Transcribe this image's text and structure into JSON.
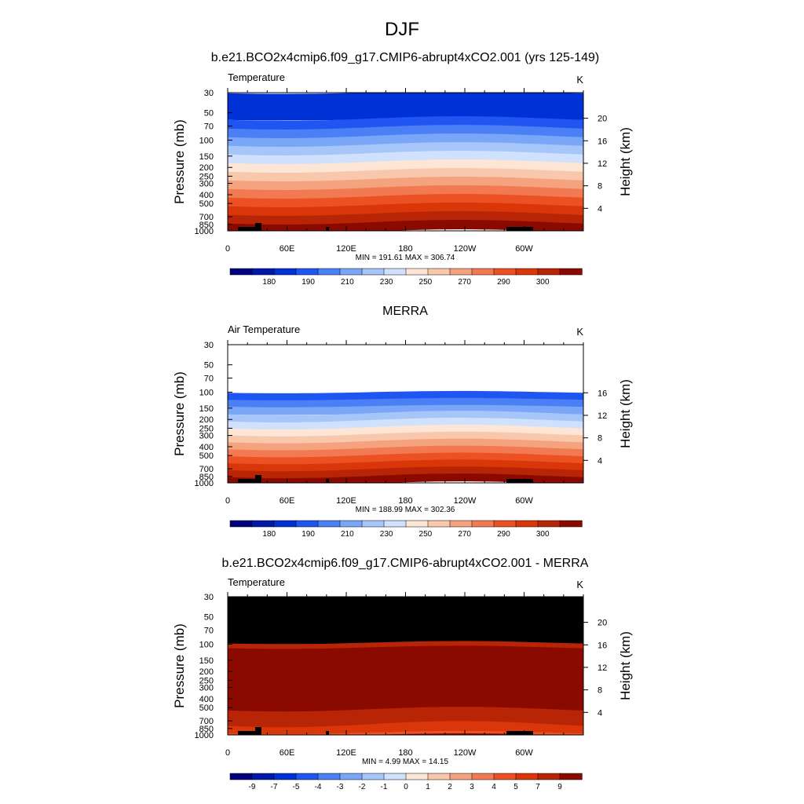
{
  "figure": {
    "title": "DJF"
  },
  "colors": {
    "scale": [
      "#00007f",
      "#0018a8",
      "#0031d6",
      "#1f55f0",
      "#4a7ff5",
      "#7aa6f7",
      "#a6c6fa",
      "#cfe1fc",
      "#fde6d6",
      "#f9c7ab",
      "#f5a27e",
      "#f27a53",
      "#ec5124",
      "#d93609",
      "#b82406",
      "#8b0a00"
    ],
    "pressure_axis": [
      "30",
      "50",
      "70",
      "100",
      "150",
      "200",
      "250",
      "300",
      "400",
      "500",
      "700",
      "850",
      "1000"
    ],
    "lon_axis": [
      "0",
      "60E",
      "120E",
      "180",
      "120W",
      "60W"
    ]
  },
  "chart_data": [
    {
      "type": "heatmap",
      "title": "b.e21.BCO2x4cmip6.f09_g17.CMIP6-abrupt4xCO2.001 (yrs 125-149)",
      "left_label": "Temperature",
      "units": "K",
      "ylabel": "Pressure (mb)",
      "ylabel_right": "Height (km)",
      "x_ticks": [
        "0",
        "60E",
        "120E",
        "180",
        "120W",
        "60W"
      ],
      "y_ticks": [
        "30",
        "50",
        "70",
        "100",
        "150",
        "200",
        "250",
        "300",
        "400",
        "500",
        "700",
        "850",
        "1000"
      ],
      "y_ticks_right": [
        "20",
        "16",
        "12",
        "8",
        "4"
      ],
      "stats": "MIN = 191.61  MAX = 306.74",
      "colorbar_labels": [
        "180",
        "190",
        "210",
        "230",
        "250",
        "270",
        "290",
        "300"
      ],
      "bands_top_to_bottom": [
        2,
        2,
        2,
        3,
        4,
        5,
        6,
        7,
        8,
        9,
        10,
        11,
        12,
        13,
        14,
        15
      ]
    },
    {
      "type": "heatmap",
      "title": "MERRA",
      "left_label": "Air Temperature",
      "units": "K",
      "ylabel": "Pressure (mb)",
      "ylabel_right": "Height (km)",
      "x_ticks": [
        "0",
        "60E",
        "120E",
        "180",
        "120W",
        "60W"
      ],
      "y_ticks": [
        "30",
        "50",
        "70",
        "100",
        "150",
        "200",
        "250",
        "300",
        "400",
        "500",
        "700",
        "850",
        "1000"
      ],
      "y_ticks_right": [
        "16",
        "12",
        "8",
        "4"
      ],
      "stats": "MIN = 188.99  MAX = 302.36",
      "colorbar_labels": [
        "180",
        "190",
        "210",
        "230",
        "250",
        "270",
        "290",
        "300"
      ],
      "data_top_pressure": 100,
      "bands_top_to_bottom": [
        3,
        4,
        5,
        6,
        7,
        8,
        9,
        10,
        11,
        12,
        13,
        14,
        15
      ]
    },
    {
      "type": "heatmap",
      "title": "b.e21.BCO2x4cmip6.f09_g17.CMIP6-abrupt4xCO2.001 - MERRA",
      "left_label": "Temperature",
      "units": "K",
      "ylabel": "Pressure (mb)",
      "ylabel_right": "Height (km)",
      "x_ticks": [
        "0",
        "60E",
        "120E",
        "180",
        "120W",
        "60W"
      ],
      "y_ticks": [
        "30",
        "50",
        "70",
        "100",
        "150",
        "200",
        "250",
        "300",
        "400",
        "500",
        "700",
        "850",
        "1000"
      ],
      "y_ticks_right": [
        "20",
        "16",
        "12",
        "8",
        "4"
      ],
      "stats": "MIN =   4.99  MAX =  14.15",
      "colorbar_labels": [
        "-9",
        "-7",
        "-5",
        "-4",
        "-3",
        "-2",
        "-1",
        "0",
        "1",
        "2",
        "3",
        "4",
        "5",
        "7",
        "9"
      ],
      "missing_above_pressure": 100
    }
  ]
}
